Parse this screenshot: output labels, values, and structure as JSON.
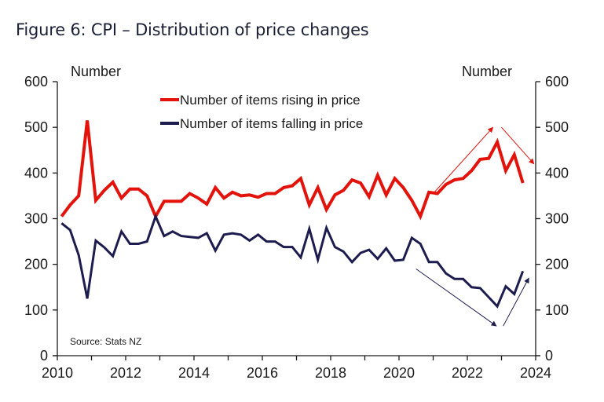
{
  "chart_data": {
    "type": "line",
    "title": "Figure 6: CPI – Distribution of price changes",
    "ylabel_left": "Number",
    "ylabel_right": "Number",
    "xlabel": "",
    "xlim": [
      2010,
      2024
    ],
    "ylim": [
      0,
      600
    ],
    "x_ticks": [
      2010,
      2012,
      2014,
      2016,
      2018,
      2020,
      2022,
      2024
    ],
    "y_ticks": [
      0,
      100,
      200,
      300,
      400,
      500,
      600
    ],
    "grid": false,
    "legend_position": "top-center",
    "source": "Source: Stats NZ",
    "x_start": 2010.125,
    "x_step": 0.25,
    "series": [
      {
        "name": "Number of items rising in price",
        "color": "#e3120b",
        "values": [
          305,
          330,
          350,
          515,
          340,
          362,
          380,
          345,
          365,
          365,
          350,
          305,
          338,
          338,
          338,
          355,
          345,
          332,
          368,
          345,
          358,
          350,
          352,
          347,
          355,
          355,
          368,
          372,
          388,
          330,
          368,
          320,
          352,
          362,
          385,
          378,
          348,
          395,
          352,
          388,
          368,
          340,
          305,
          358,
          355,
          375,
          385,
          388,
          405,
          430,
          432,
          468,
          405,
          440,
          378
        ]
      },
      {
        "name": "Number of items falling in price",
        "color": "#1c1c4e",
        "values": [
          290,
          275,
          220,
          125,
          252,
          237,
          218,
          272,
          245,
          245,
          250,
          305,
          262,
          272,
          262,
          260,
          258,
          268,
          230,
          265,
          268,
          265,
          252,
          265,
          250,
          250,
          238,
          238,
          215,
          278,
          210,
          280,
          238,
          228,
          205,
          225,
          232,
          212,
          235,
          208,
          210,
          258,
          245,
          205,
          205,
          180,
          168,
          168,
          150,
          148,
          128,
          108,
          152,
          135,
          185
        ]
      }
    ],
    "annotations": [
      {
        "type": "arrow",
        "color": "#e3120b",
        "from": [
          2021.0,
          355
        ],
        "to": [
          2022.75,
          500
        ],
        "meaning": "rising trend up"
      },
      {
        "type": "arrow",
        "color": "#e3120b",
        "from": [
          2023.0,
          500
        ],
        "to": [
          2023.95,
          420
        ],
        "meaning": "rising trend down"
      },
      {
        "type": "arrow",
        "color": "#1c1c4e",
        "from": [
          2020.5,
          190
        ],
        "to": [
          2022.85,
          65
        ],
        "meaning": "falling trend down"
      },
      {
        "type": "arrow",
        "color": "#1c1c4e",
        "from": [
          2023.05,
          65
        ],
        "to": [
          2023.8,
          170
        ],
        "meaning": "falling trend up"
      }
    ]
  }
}
